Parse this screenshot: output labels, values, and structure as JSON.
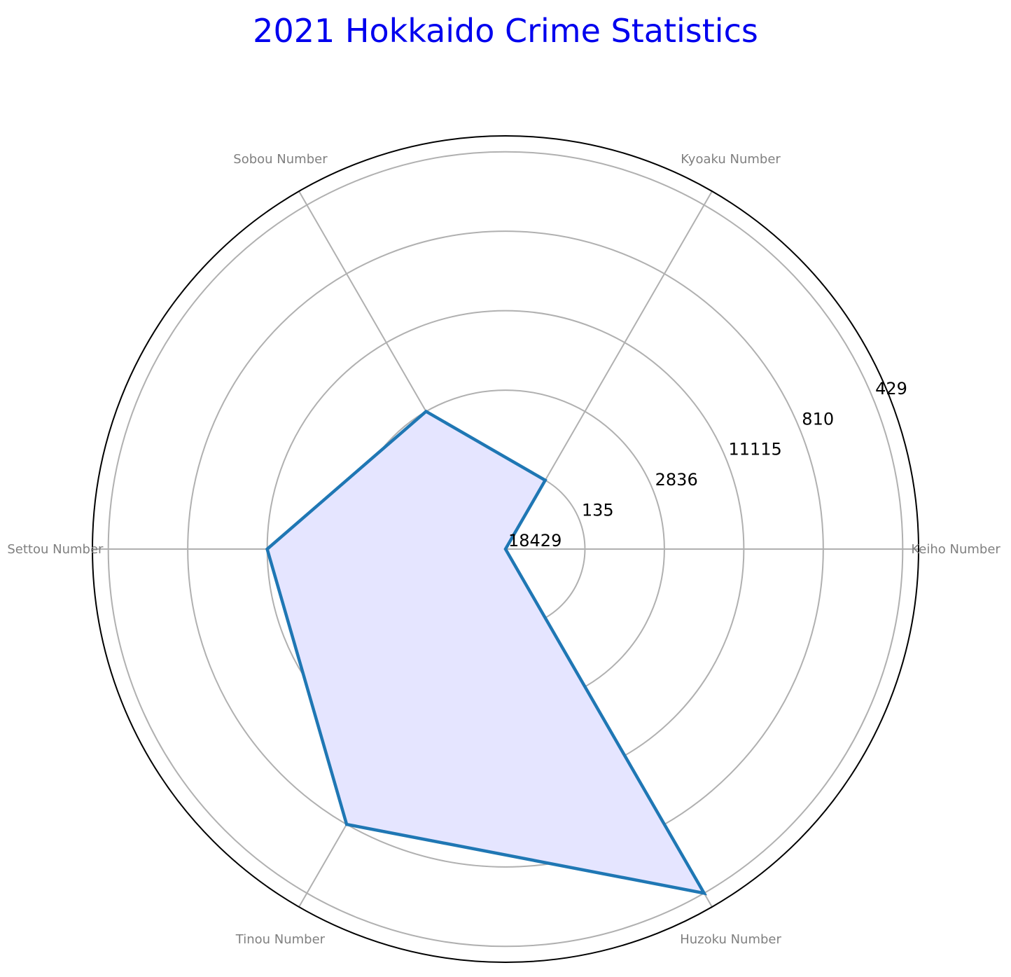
{
  "chart_data": {
    "type": "radar",
    "title": "2021 Hokkaido Crime Statistics",
    "categories": [
      "Keiho Number",
      "Kyoaku Number",
      "Sobou Number",
      "Settou Number",
      "Tinou Number",
      "Huzoku Number"
    ],
    "values": [
      0,
      1,
      2,
      3,
      4,
      5
    ],
    "ring_tick_labels": [
      "18429",
      "135",
      "2836",
      "11115",
      "810",
      "429"
    ],
    "rlim": [
      0,
      5.2
    ],
    "ring_values": [
      0,
      1,
      2,
      3,
      4,
      5
    ],
    "grid": true,
    "colors": {
      "title": "#0000ee",
      "line": "#1f77b4",
      "fill": "#e5e5ff",
      "grid": "#b0b0b0",
      "frame": "#000000",
      "axis_label": "#808080"
    }
  }
}
